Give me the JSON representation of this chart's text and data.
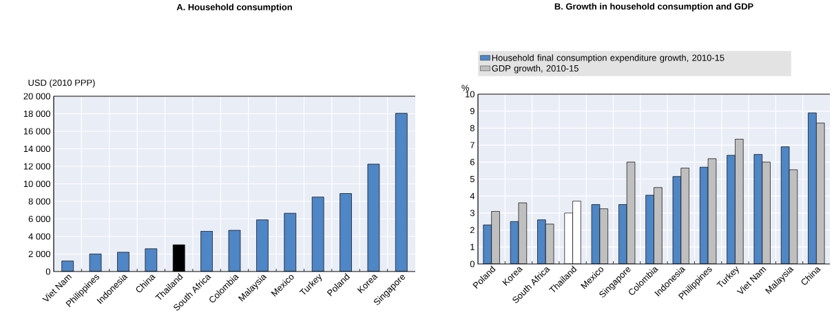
{
  "chart_data": [
    {
      "type": "bar",
      "title": "A. Household consumption",
      "ylabel": "USD (2010 PPP)",
      "categories": [
        "Viet Nam",
        "Philippines",
        "Indonesia",
        "China",
        "Thailand",
        "South Africa",
        "Colombia",
        "Malaysia",
        "Mexico",
        "Turkey",
        "Poland",
        "Korea",
        "Singapore"
      ],
      "series": [
        {
          "colors": [
            "#4e86c6",
            "#4e86c6",
            "#4e86c6",
            "#4e86c6",
            "#000000",
            "#4e86c6",
            "#4e86c6",
            "#4e86c6",
            "#4e86c6",
            "#4e86c6",
            "#4e86c6",
            "#4e86c6",
            "#4e86c6"
          ],
          "values": [
            1200,
            2000,
            2200,
            2600,
            3050,
            4600,
            4700,
            5900,
            6650,
            8500,
            8900,
            12250,
            18050
          ]
        }
      ],
      "ylim": [
        0,
        20000
      ],
      "yticks": [
        0,
        {
          "value": 2000,
          "label": "2 000"
        },
        {
          "value": 4000,
          "label": "4 000"
        },
        {
          "value": 6000,
          "label": "6 000"
        },
        {
          "value": 8000,
          "label": "8 000"
        },
        {
          "value": 10000,
          "label": "10 000"
        },
        {
          "value": 12000,
          "label": "12 000"
        },
        {
          "value": 14000,
          "label": "14 000"
        },
        {
          "value": 16000,
          "label": "16 000"
        },
        {
          "value": 18000,
          "label": "18 000"
        },
        {
          "value": 20000,
          "label": "20 000"
        }
      ],
      "grid": true
    },
    {
      "type": "bar",
      "title": "B. Growth in household consumption and GDP",
      "ylabel": "%",
      "categories": [
        "Poland",
        "Korea",
        "South Africa",
        "Thailand",
        "Mexico",
        "Singapore",
        "Colombia",
        "Indonesia",
        "Philippines",
        "Turkey",
        "Viet Nam",
        "Malaysia",
        "China"
      ],
      "series": [
        {
          "name": "Household final consumption expenditure growth, 2010-15",
          "color": "#4e86c6",
          "colors": [
            "#4e86c6",
            "#4e86c6",
            "#4e86c6",
            "#ffffff",
            "#4e86c6",
            "#4e86c6",
            "#4e86c6",
            "#4e86c6",
            "#4e86c6",
            "#4e86c6",
            "#4e86c6",
            "#4e86c6",
            "#4e86c6"
          ],
          "values": [
            2.3,
            2.5,
            2.6,
            3.0,
            3.5,
            3.5,
            4.05,
            5.15,
            5.7,
            6.4,
            6.45,
            6.9,
            8.9
          ]
        },
        {
          "name": "GDP growth, 2010-15",
          "color": "#bfbfbf",
          "colors": [
            "#bfbfbf",
            "#bfbfbf",
            "#bfbfbf",
            "#ffffff",
            "#bfbfbf",
            "#bfbfbf",
            "#bfbfbf",
            "#bfbfbf",
            "#bfbfbf",
            "#bfbfbf",
            "#bfbfbf",
            "#bfbfbf",
            "#bfbfbf"
          ],
          "values": [
            3.1,
            3.6,
            2.35,
            3.7,
            3.25,
            6.0,
            4.5,
            5.65,
            6.2,
            7.35,
            6.0,
            5.55,
            8.3
          ]
        }
      ],
      "ylim": [
        0,
        10
      ],
      "yticks": [
        0,
        1,
        2,
        3,
        4,
        5,
        6,
        7,
        8,
        9,
        10
      ],
      "grid": true,
      "legend": "top"
    }
  ]
}
